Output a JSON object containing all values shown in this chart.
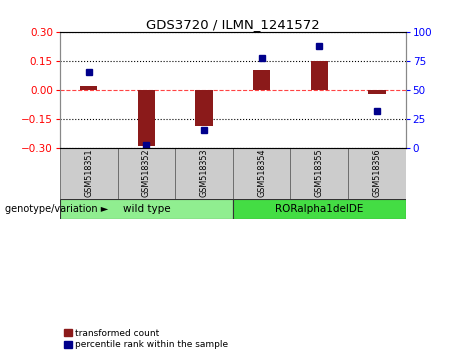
{
  "title": "GDS3720 / ILMN_1241572",
  "samples": [
    "GSM518351",
    "GSM518352",
    "GSM518353",
    "GSM518354",
    "GSM518355",
    "GSM518356"
  ],
  "bar_values": [
    0.02,
    -0.29,
    -0.19,
    0.1,
    0.15,
    -0.02
  ],
  "percentile_values": [
    65,
    2,
    15,
    77,
    88,
    32
  ],
  "ylim_left": [
    -0.3,
    0.3
  ],
  "ylim_right": [
    0,
    100
  ],
  "yticks_left": [
    -0.3,
    -0.15,
    0,
    0.15,
    0.3
  ],
  "yticks_right": [
    0,
    25,
    50,
    75,
    100
  ],
  "bar_color": "#8B1A1A",
  "dot_color": "#00008B",
  "zero_line_color": "#FF4444",
  "grid_color": "#000000",
  "groups": [
    {
      "label": "wild type",
      "color": "#90EE90",
      "start": 0,
      "end": 2
    },
    {
      "label": "RORalpha1delDE",
      "color": "#44DD44",
      "start": 3,
      "end": 5
    }
  ],
  "sample_box_color": "#CCCCCC",
  "legend_items": [
    {
      "label": "transformed count",
      "color": "#8B1A1A"
    },
    {
      "label": "percentile rank within the sample",
      "color": "#00008B"
    }
  ],
  "genotype_label": "genotype/variation",
  "background_color": "#FFFFFF"
}
